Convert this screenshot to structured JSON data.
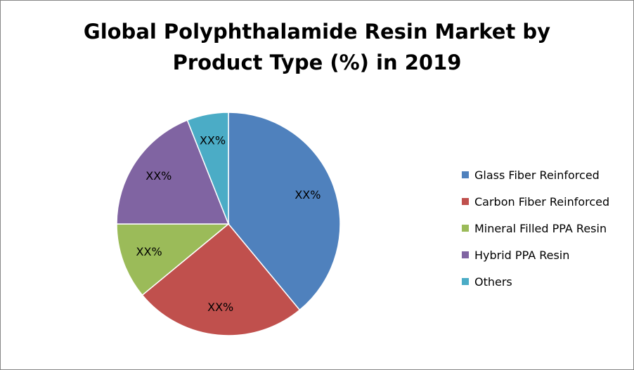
{
  "chart_data": {
    "type": "pie",
    "title": [
      "Global Polyphthalamide Resin Market by",
      "Product Type (%) in 2019"
    ],
    "categories": [
      "Glass Fiber Reinforced",
      "Carbon Fiber Reinforced",
      "Mineral Filled PPA Resin",
      "Hybrid PPA Resin",
      "Others"
    ],
    "values": [
      39,
      25,
      11,
      19,
      6
    ],
    "data_labels": [
      "XX%",
      "XX%",
      "XX%",
      "XX%",
      "XX%"
    ],
    "colors": [
      "#4F81BD",
      "#C0504D",
      "#9BBB59",
      "#8064A2",
      "#4BACC6"
    ],
    "legend_position": "right",
    "start_angle": "12 o'clock, clockwise"
  }
}
